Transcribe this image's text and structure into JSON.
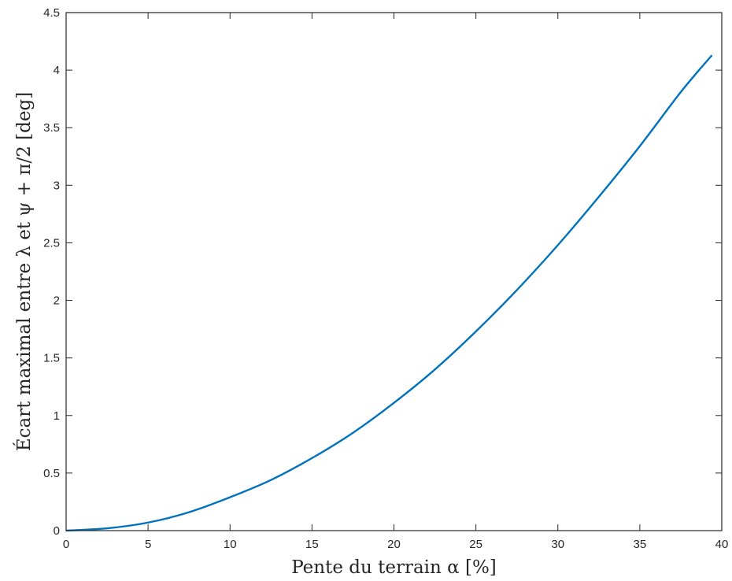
{
  "chart_data": {
    "type": "line",
    "xlabel": "Pente du terrain α [%]",
    "ylabel": "Écart maximal entre λ et ψ + π/2 [deg]",
    "xlim": [
      0,
      40
    ],
    "ylim": [
      0,
      4.5
    ],
    "xticks": [
      "0",
      "5",
      "10",
      "15",
      "20",
      "25",
      "30",
      "35",
      "40"
    ],
    "yticks": [
      "0",
      "0.5",
      "1",
      "1.5",
      "2",
      "2.5",
      "3",
      "3.5",
      "4",
      "4.5"
    ],
    "grid": false,
    "legend": "none",
    "series": [
      {
        "color": "#0072BD",
        "x": [
          0,
          2.5,
          5,
          7.5,
          10,
          12.5,
          15,
          17.5,
          20,
          22.5,
          25,
          27.5,
          30,
          32.5,
          35,
          37.5,
          39.4
        ],
        "y": [
          0,
          0.02,
          0.07,
          0.16,
          0.29,
          0.44,
          0.63,
          0.85,
          1.11,
          1.4,
          1.73,
          2.09,
          2.48,
          2.9,
          3.34,
          3.81,
          4.13
        ]
      }
    ]
  }
}
